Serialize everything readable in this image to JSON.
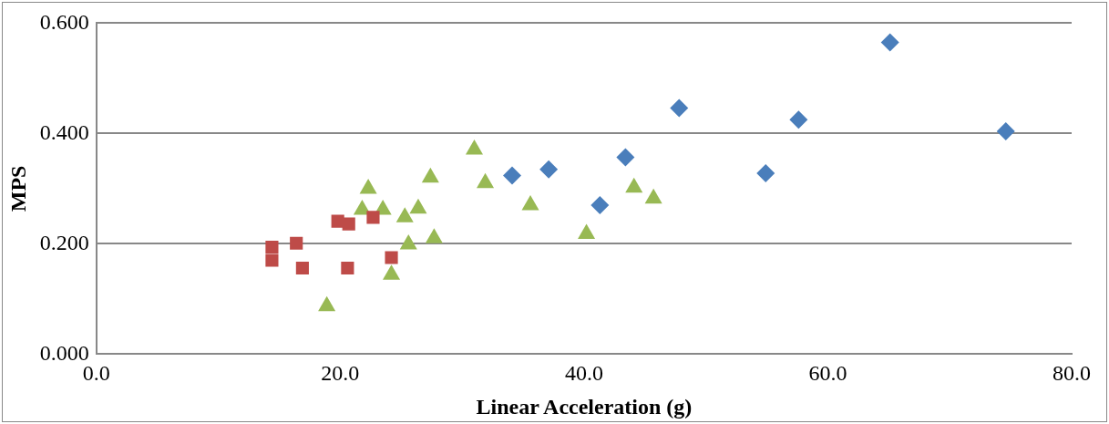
{
  "chart_data": {
    "type": "scatter",
    "xlabel": "Linear Acceleration (g)",
    "ylabel": "MPS",
    "xlim": [
      0,
      80
    ],
    "ylim": [
      0,
      0.6
    ],
    "xticks": [
      {
        "value": 0,
        "label": "0.0"
      },
      {
        "value": 20,
        "label": "20.0"
      },
      {
        "value": 40,
        "label": "40.0"
      },
      {
        "value": 60,
        "label": "60.0"
      },
      {
        "value": 80,
        "label": "80.0"
      }
    ],
    "yticks": [
      {
        "value": 0,
        "label": "0.000"
      },
      {
        "value": 0.2,
        "label": "0.200"
      },
      {
        "value": 0.4,
        "label": "0.400"
      },
      {
        "value": 0.6,
        "label": "0.600"
      }
    ],
    "grid": "y",
    "legend": false,
    "series": [
      {
        "color": "#4a7ebb",
        "marker": "diamond",
        "x": [
          34.1,
          37.1,
          41.3,
          43.4,
          47.8,
          54.9,
          57.6,
          65.1,
          74.6
        ],
        "values": [
          0.324,
          0.335,
          0.27,
          0.357,
          0.446,
          0.328,
          0.425,
          0.565,
          0.404
        ]
      },
      {
        "color": "#be4b48",
        "marker": "square",
        "x": [
          14.4,
          14.4,
          16.4,
          16.9,
          19.8,
          20.7,
          22.7,
          20.6,
          24.2
        ],
        "values": [
          0.194,
          0.17,
          0.201,
          0.156,
          0.241,
          0.236,
          0.248,
          0.156,
          0.175
        ]
      },
      {
        "color": "#98b954",
        "marker": "triangle",
        "x": [
          18.9,
          21.8,
          22.3,
          23.5,
          24.2,
          25.3,
          25.6,
          26.4,
          27.4,
          27.7,
          31.0,
          31.9,
          35.6,
          40.2,
          44.1,
          45.7
        ],
        "values": [
          0.087,
          0.262,
          0.3,
          0.262,
          0.144,
          0.248,
          0.199,
          0.264,
          0.32,
          0.21,
          0.371,
          0.31,
          0.27,
          0.218,
          0.302,
          0.282
        ]
      }
    ]
  }
}
